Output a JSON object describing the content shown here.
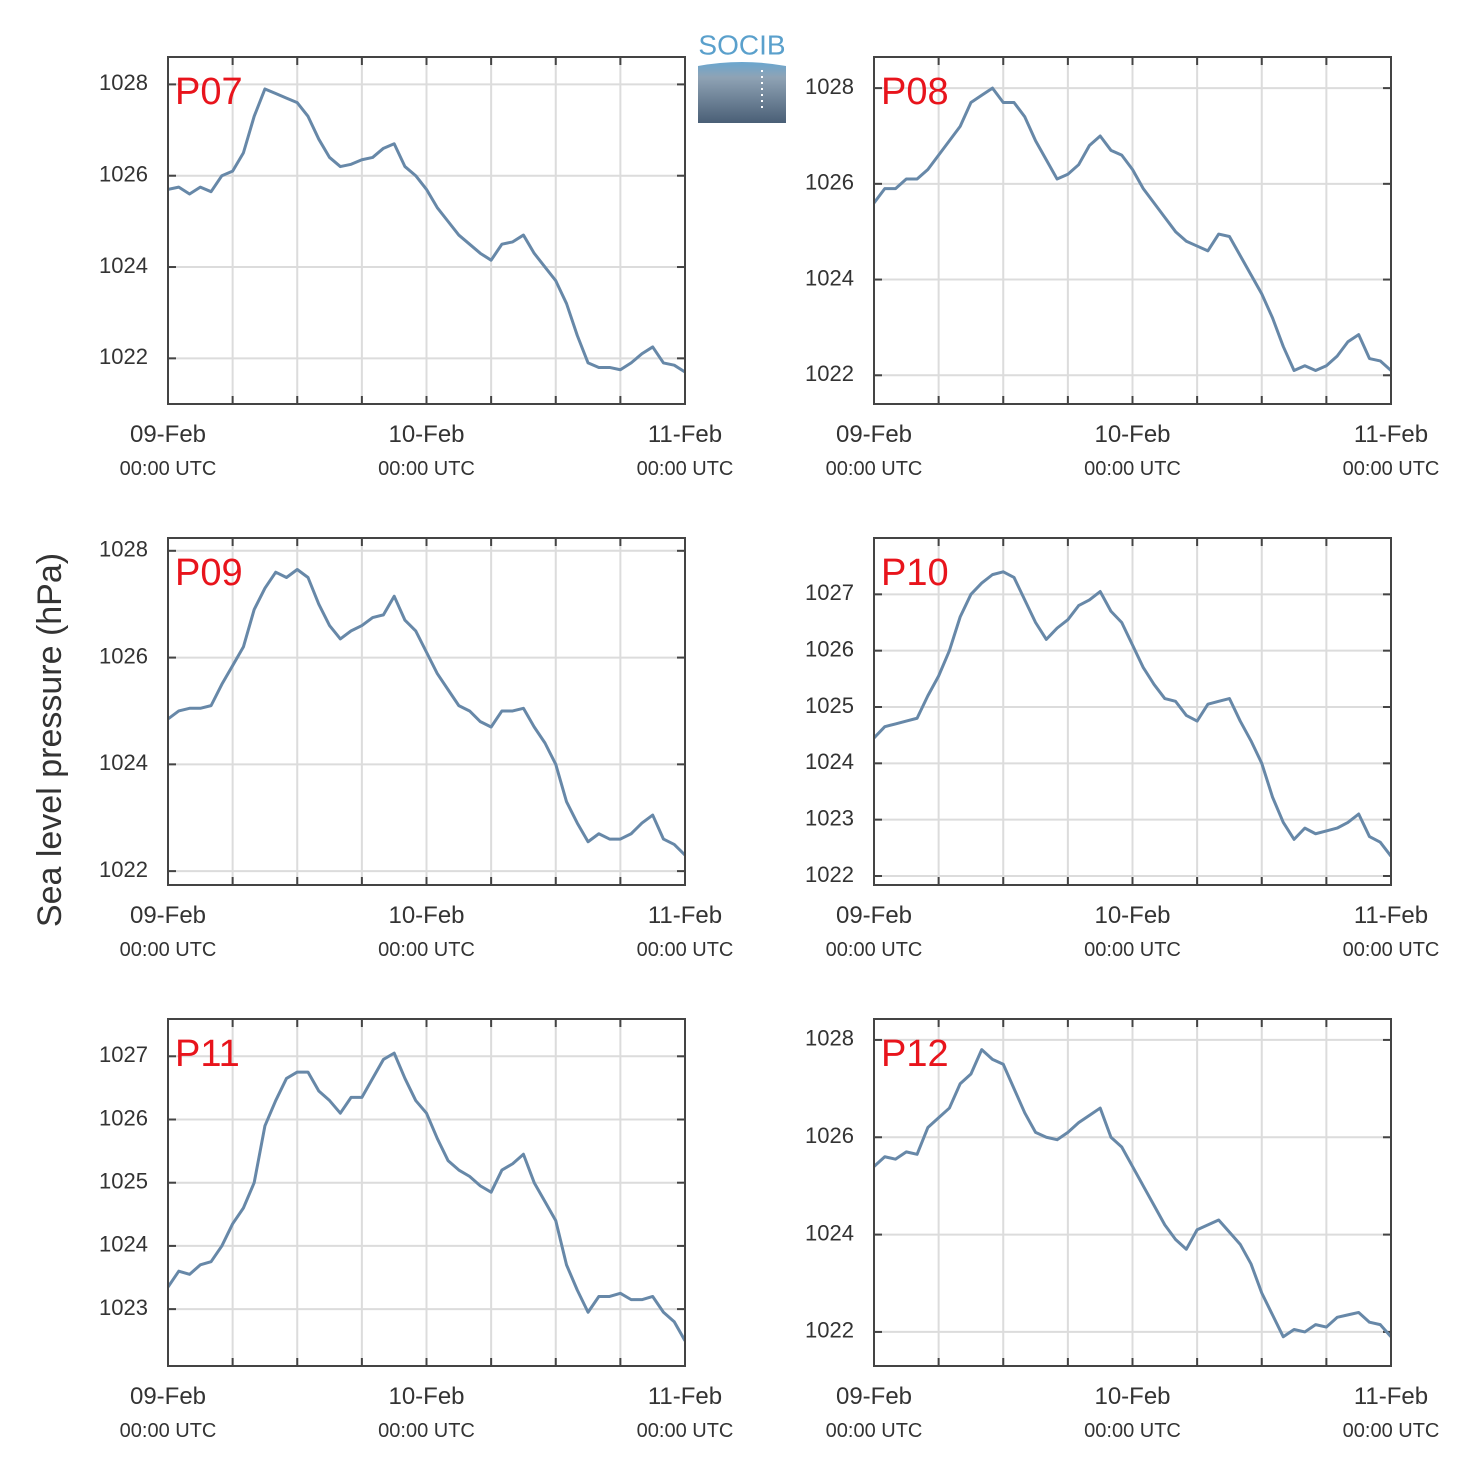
{
  "ylabel": "Sea level pressure (hPa)",
  "logo": "SOCIB",
  "chart_data": [
    {
      "type": "line",
      "title": "P07",
      "color": "#6788a8",
      "grid": true,
      "x": [
        0,
        1,
        2,
        3,
        4,
        5,
        6,
        7,
        8,
        9,
        10,
        11,
        12,
        13,
        14,
        15,
        16,
        17,
        18,
        19,
        20,
        21,
        22,
        23,
        24,
        25,
        26,
        27,
        28,
        29,
        30,
        31,
        32,
        33,
        34,
        35,
        36,
        37,
        38,
        39,
        40,
        41,
        42,
        43,
        44,
        45,
        46,
        47,
        48
      ],
      "values": [
        1025.7,
        1025.75,
        1025.6,
        1025.75,
        1025.65,
        1026.0,
        1026.1,
        1026.5,
        1027.3,
        1027.9,
        1027.8,
        1027.7,
        1027.6,
        1027.3,
        1026.8,
        1026.4,
        1026.2,
        1026.25,
        1026.35,
        1026.4,
        1026.6,
        1026.7,
        1026.2,
        1026.0,
        1025.7,
        1025.3,
        1025.0,
        1024.7,
        1024.5,
        1024.3,
        1024.15,
        1024.5,
        1024.55,
        1024.7,
        1024.3,
        1024.0,
        1023.7,
        1023.2,
        1022.5,
        1021.9,
        1021.8,
        1021.8,
        1021.75,
        1021.9,
        1022.1,
        1022.25,
        1021.9,
        1021.85,
        1021.7
      ],
      "xlim": [
        0,
        48
      ],
      "xticks": [
        {
          "value": 0,
          "label": "09-Feb\n00:00 UTC"
        },
        {
          "value": 24,
          "label": "10-Feb\n00:00 UTC"
        },
        {
          "value": 48,
          "label": "11-Feb\n00:00 UTC"
        }
      ],
      "xminor_ticks": [
        6,
        12,
        18,
        30,
        36,
        42
      ],
      "ylim": [
        1021,
        1028.6
      ],
      "yticks": [
        1022,
        1024,
        1026,
        1028
      ]
    },
    {
      "type": "line",
      "title": "P08",
      "color": "#6788a8",
      "grid": true,
      "x": [
        0,
        1,
        2,
        3,
        4,
        5,
        6,
        7,
        8,
        9,
        10,
        11,
        12,
        13,
        14,
        15,
        16,
        17,
        18,
        19,
        20,
        21,
        22,
        23,
        24,
        25,
        26,
        27,
        28,
        29,
        30,
        31,
        32,
        33,
        34,
        35,
        36,
        37,
        38,
        39,
        40,
        41,
        42,
        43,
        44,
        45,
        46,
        47,
        48
      ],
      "values": [
        1025.6,
        1025.9,
        1025.9,
        1026.1,
        1026.1,
        1026.3,
        1026.6,
        1026.9,
        1027.2,
        1027.7,
        1027.85,
        1028.0,
        1027.7,
        1027.7,
        1027.4,
        1026.9,
        1026.5,
        1026.1,
        1026.2,
        1026.4,
        1026.8,
        1027.0,
        1026.7,
        1026.6,
        1026.3,
        1025.9,
        1025.6,
        1025.3,
        1025.0,
        1024.8,
        1024.7,
        1024.6,
        1024.95,
        1024.9,
        1024.5,
        1024.1,
        1023.7,
        1023.2,
        1022.6,
        1022.1,
        1022.2,
        1022.1,
        1022.2,
        1022.4,
        1022.7,
        1022.85,
        1022.35,
        1022.3,
        1022.1
      ],
      "xlim": [
        0,
        48
      ],
      "xticks": [
        {
          "value": 0,
          "label": "09-Feb\n00:00 UTC"
        },
        {
          "value": 24,
          "label": "10-Feb\n00:00 UTC"
        },
        {
          "value": 48,
          "label": "11-Feb\n00:00 UTC"
        }
      ],
      "xminor_ticks": [
        6,
        12,
        18,
        30,
        36,
        42
      ],
      "ylim": [
        1021.4,
        1028.65
      ],
      "yticks": [
        1022,
        1024,
        1026,
        1028
      ]
    },
    {
      "type": "line",
      "title": "P09",
      "color": "#6788a8",
      "grid": true,
      "x": [
        0,
        1,
        2,
        3,
        4,
        5,
        6,
        7,
        8,
        9,
        10,
        11,
        12,
        13,
        14,
        15,
        16,
        17,
        18,
        19,
        20,
        21,
        22,
        23,
        24,
        25,
        26,
        27,
        28,
        29,
        30,
        31,
        32,
        33,
        34,
        35,
        36,
        37,
        38,
        39,
        40,
        41,
        42,
        43,
        44,
        45,
        46,
        47,
        48
      ],
      "values": [
        1024.85,
        1025.0,
        1025.05,
        1025.05,
        1025.1,
        1025.5,
        1025.85,
        1026.2,
        1026.9,
        1027.3,
        1027.6,
        1027.5,
        1027.65,
        1027.5,
        1027.0,
        1026.6,
        1026.35,
        1026.5,
        1026.6,
        1026.75,
        1026.8,
        1027.15,
        1026.7,
        1026.5,
        1026.1,
        1025.7,
        1025.4,
        1025.1,
        1025.0,
        1024.8,
        1024.7,
        1025.0,
        1025.0,
        1025.05,
        1024.7,
        1024.4,
        1024.0,
        1023.3,
        1022.9,
        1022.55,
        1022.7,
        1022.6,
        1022.6,
        1022.7,
        1022.9,
        1023.05,
        1022.6,
        1022.5,
        1022.3
      ],
      "xlim": [
        0,
        48
      ],
      "xticks": [
        {
          "value": 0,
          "label": "09-Feb\n00:00 UTC"
        },
        {
          "value": 24,
          "label": "10-Feb\n00:00 UTC"
        },
        {
          "value": 48,
          "label": "11-Feb\n00:00 UTC"
        }
      ],
      "xminor_ticks": [
        6,
        12,
        18,
        30,
        36,
        42
      ],
      "ylim": [
        1021.74,
        1028.24
      ],
      "yticks": [
        1022,
        1024,
        1026,
        1028
      ]
    },
    {
      "type": "line",
      "title": "P10",
      "color": "#6788a8",
      "grid": true,
      "x": [
        0,
        1,
        2,
        3,
        4,
        5,
        6,
        7,
        8,
        9,
        10,
        11,
        12,
        13,
        14,
        15,
        16,
        17,
        18,
        19,
        20,
        21,
        22,
        23,
        24,
        25,
        26,
        27,
        28,
        29,
        30,
        31,
        32,
        33,
        34,
        35,
        36,
        37,
        38,
        39,
        40,
        41,
        42,
        43,
        44,
        45,
        46,
        47,
        48
      ],
      "values": [
        1024.45,
        1024.65,
        1024.7,
        1024.75,
        1024.8,
        1025.2,
        1025.55,
        1026.0,
        1026.6,
        1027.0,
        1027.2,
        1027.35,
        1027.4,
        1027.3,
        1026.9,
        1026.5,
        1026.2,
        1026.4,
        1026.55,
        1026.8,
        1026.9,
        1027.05,
        1026.7,
        1026.5,
        1026.1,
        1025.7,
        1025.4,
        1025.15,
        1025.1,
        1024.85,
        1024.75,
        1025.05,
        1025.1,
        1025.15,
        1024.75,
        1024.4,
        1024.0,
        1023.4,
        1022.95,
        1022.65,
        1022.85,
        1022.75,
        1022.8,
        1022.85,
        1022.95,
        1023.1,
        1022.7,
        1022.6,
        1022.35
      ],
      "xlim": [
        0,
        48
      ],
      "xticks": [
        {
          "value": 0,
          "label": "09-Feb\n00:00 UTC"
        },
        {
          "value": 24,
          "label": "10-Feb\n00:00 UTC"
        },
        {
          "value": 48,
          "label": "11-Feb\n00:00 UTC"
        }
      ],
      "xminor_ticks": [
        6,
        12,
        18,
        30,
        36,
        42
      ],
      "ylim": [
        1021.84,
        1028
      ],
      "yticks": [
        1022,
        1023,
        1024,
        1025,
        1026,
        1027
      ]
    },
    {
      "type": "line",
      "title": "P11",
      "color": "#6788a8",
      "grid": true,
      "x": [
        0,
        1,
        2,
        3,
        4,
        5,
        6,
        7,
        8,
        9,
        10,
        11,
        12,
        13,
        14,
        15,
        16,
        17,
        18,
        19,
        20,
        21,
        22,
        23,
        24,
        25,
        26,
        27,
        28,
        29,
        30,
        31,
        32,
        33,
        34,
        35,
        36,
        37,
        38,
        39,
        40,
        41,
        42,
        43,
        44,
        45,
        46,
        47,
        48
      ],
      "values": [
        1023.35,
        1023.6,
        1023.55,
        1023.7,
        1023.75,
        1024.0,
        1024.35,
        1024.6,
        1025.0,
        1025.9,
        1026.3,
        1026.65,
        1026.75,
        1026.75,
        1026.45,
        1026.3,
        1026.1,
        1026.35,
        1026.35,
        1026.65,
        1026.95,
        1027.05,
        1026.65,
        1026.3,
        1026.1,
        1025.7,
        1025.35,
        1025.2,
        1025.1,
        1024.95,
        1024.85,
        1025.2,
        1025.3,
        1025.45,
        1025.0,
        1024.7,
        1024.4,
        1023.7,
        1023.3,
        1022.95,
        1023.2,
        1023.2,
        1023.25,
        1023.15,
        1023.15,
        1023.2,
        1022.95,
        1022.8,
        1022.5
      ],
      "xlim": [
        0,
        48
      ],
      "xticks": [
        {
          "value": 0,
          "label": "09-Feb\n00:00 UTC"
        },
        {
          "value": 24,
          "label": "10-Feb\n00:00 UTC"
        },
        {
          "value": 48,
          "label": "11-Feb\n00:00 UTC"
        }
      ],
      "xminor_ticks": [
        6,
        12,
        18,
        30,
        36,
        42
      ],
      "ylim": [
        1022.1,
        1027.59
      ],
      "yticks": [
        1023,
        1024,
        1025,
        1026,
        1027
      ]
    },
    {
      "type": "line",
      "title": "P12",
      "color": "#6788a8",
      "grid": true,
      "x": [
        0,
        1,
        2,
        3,
        4,
        5,
        6,
        7,
        8,
        9,
        10,
        11,
        12,
        13,
        14,
        15,
        16,
        17,
        18,
        19,
        20,
        21,
        22,
        23,
        24,
        25,
        26,
        27,
        28,
        29,
        30,
        31,
        32,
        33,
        34,
        35,
        36,
        37,
        38,
        39,
        40,
        41,
        42,
        43,
        44,
        45,
        46,
        47,
        48
      ],
      "values": [
        1025.4,
        1025.6,
        1025.55,
        1025.7,
        1025.65,
        1026.2,
        1026.4,
        1026.6,
        1027.1,
        1027.3,
        1027.8,
        1027.6,
        1027.5,
        1027.0,
        1026.5,
        1026.1,
        1026.0,
        1025.95,
        1026.1,
        1026.3,
        1026.45,
        1026.6,
        1026.0,
        1025.8,
        1025.4,
        1025.0,
        1024.6,
        1024.2,
        1023.9,
        1023.7,
        1024.1,
        1024.2,
        1024.3,
        1024.05,
        1023.8,
        1023.4,
        1022.8,
        1022.35,
        1021.9,
        1022.05,
        1022.0,
        1022.15,
        1022.1,
        1022.3,
        1022.35,
        1022.4,
        1022.2,
        1022.15,
        1021.9
      ],
      "xlim": [
        0,
        48
      ],
      "xticks": [
        {
          "value": 0,
          "label": "09-Feb\n00:00 UTC"
        },
        {
          "value": 24,
          "label": "10-Feb\n00:00 UTC"
        },
        {
          "value": 48,
          "label": "11-Feb\n00:00 UTC"
        }
      ],
      "xminor_ticks": [
        6,
        12,
        18,
        30,
        36,
        42
      ],
      "ylim": [
        1021.3,
        1028.43
      ],
      "yticks": [
        1022,
        1024,
        1026,
        1028
      ]
    }
  ]
}
